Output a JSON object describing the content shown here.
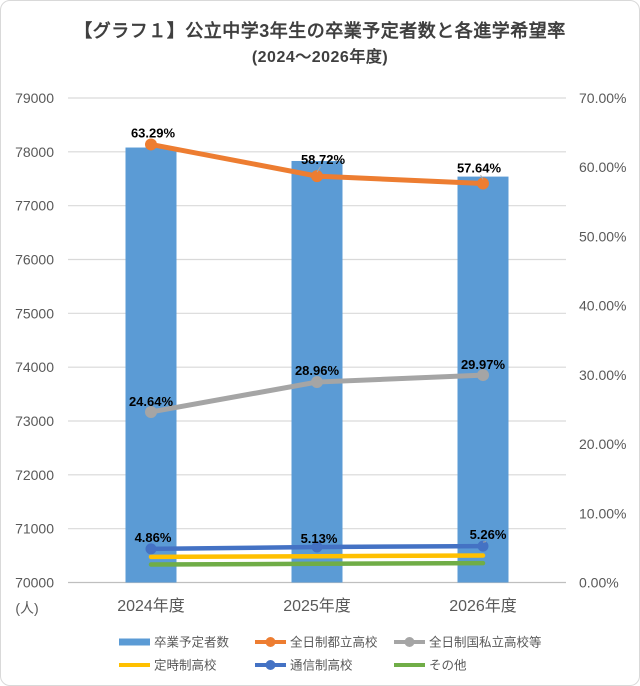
{
  "title": {
    "line1": "【グラフ１】公立中学3年生の卒業予定者数と各進学希望率",
    "line2": "(2024〜2026年度)"
  },
  "chart_data": {
    "type": "bar+line combo",
    "categories": [
      "2024年度",
      "2025年度",
      "2026年度"
    ],
    "left_axis": {
      "unit_label": "(人)",
      "min": 70000,
      "max": 79000,
      "step": 1000,
      "ticks": [
        "79000",
        "78000",
        "77000",
        "76000",
        "75000",
        "74000",
        "73000",
        "72000",
        "71000",
        "70000"
      ]
    },
    "right_axis": {
      "min": 0,
      "max": 70,
      "step": 10,
      "ticks": [
        "70.00%",
        "60.00%",
        "50.00%",
        "40.00%",
        "30.00%",
        "20.00%",
        "10.00%",
        "0.00%"
      ]
    },
    "grid": "horizontal-only",
    "bar_series": {
      "name": "卒業予定者数",
      "axis": "left",
      "color": "#5B9BD5",
      "values": [
        78080,
        77830,
        77540
      ],
      "labeled": false
    },
    "line_series": [
      {
        "name": "全日制都立高校",
        "axis": "right",
        "color": "#ED7D31",
        "marker": true,
        "values": [
          63.29,
          58.72,
          57.64
        ],
        "labels": [
          "63.29%",
          "58.72%",
          "57.64%"
        ]
      },
      {
        "name": "全日制国私立高校等",
        "axis": "right",
        "color": "#A5A5A5",
        "marker": true,
        "values": [
          24.64,
          28.96,
          29.97
        ],
        "labels": [
          "24.64%",
          "28.96%",
          "29.97%"
        ]
      },
      {
        "name": "定時制高校",
        "axis": "right",
        "color": "#FFC000",
        "marker": false,
        "values": [
          3.7,
          3.8,
          3.9
        ],
        "labels": null
      },
      {
        "name": "通信制高校",
        "axis": "right",
        "color": "#4472C4",
        "marker": true,
        "values": [
          4.86,
          5.13,
          5.26
        ],
        "labels": [
          "4.86%",
          "5.13%",
          "5.26%"
        ]
      },
      {
        "name": "その他",
        "axis": "right",
        "color": "#70AD47",
        "marker": false,
        "values": [
          2.6,
          2.7,
          2.8
        ],
        "labels": null
      }
    ],
    "legend": {
      "position": "bottom",
      "rows": [
        [
          {
            "label": "卒業予定者数",
            "swatch": "bar",
            "color": "#5B9BD5"
          },
          {
            "label": "全日制都立高校",
            "swatch": "line-marker",
            "color": "#ED7D31"
          },
          {
            "label": "全日制国私立高校等",
            "swatch": "line-marker",
            "color": "#A5A5A5"
          }
        ],
        [
          {
            "label": "定時制高校",
            "swatch": "line",
            "color": "#FFC000"
          },
          {
            "label": "通信制高校",
            "swatch": "line-marker",
            "color": "#4472C4"
          },
          {
            "label": "その他",
            "swatch": "line",
            "color": "#70AD47"
          }
        ]
      ]
    },
    "colors": {
      "gridline": "#D9D9D9",
      "axis_line": "#BFBFBF",
      "tick_text": "#595959",
      "title_text": "#3F3F3F",
      "data_label_text": "#000000",
      "leader_line": "#A6A6A6"
    }
  }
}
